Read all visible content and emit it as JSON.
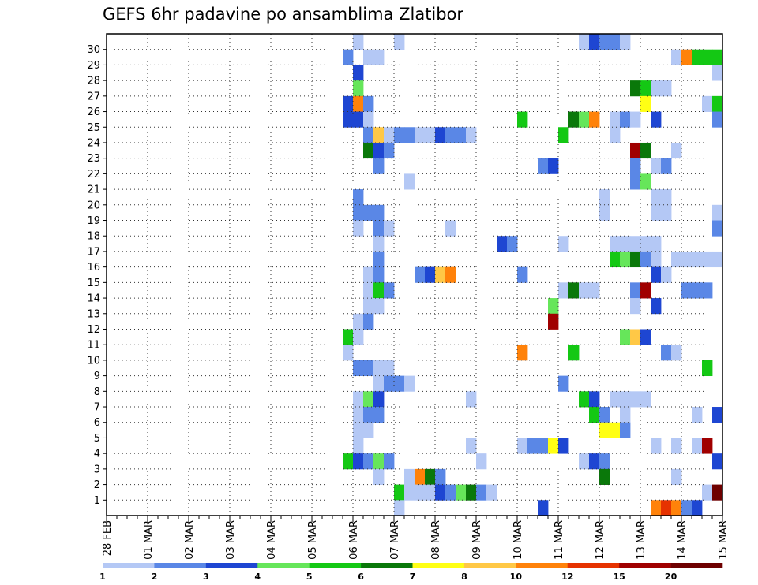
{
  "title": "GEFS 6hr padavine po ansamblima Zlatibor",
  "chart_data": {
    "type": "heatmap",
    "title": "GEFS 6hr padavine po ansamblima Zlatibor",
    "y_ticks": [
      "1",
      "2",
      "3",
      "4",
      "5",
      "6",
      "7",
      "8",
      "9",
      "10",
      "11",
      "12",
      "13",
      "14",
      "15",
      "16",
      "17",
      "18",
      "19",
      "20",
      "21",
      "22",
      "23",
      "24",
      "25",
      "26",
      "27",
      "28",
      "29",
      "30"
    ],
    "ylim": [
      0,
      30
    ],
    "x_tick_labels": [
      "28 FEB",
      "01 MAR",
      "02 MAR",
      "03 MAR",
      "04 MAR",
      "05 MAR",
      "06 MAR",
      "07 MAR",
      "08 MAR",
      "09 MAR",
      "10 MAR",
      "11 MAR",
      "12 MAR",
      "13 MAR",
      "14 MAR",
      "15 MAR"
    ],
    "x_steps_per_day": 4,
    "x_total_steps": 60,
    "grid": true,
    "colorbar": {
      "labels": [
        "1",
        "2",
        "3",
        "4",
        "5",
        "6",
        "7",
        "8",
        "10",
        "12",
        "15",
        "20"
      ],
      "colors": [
        "#b4c8f5",
        "#5a87e6",
        "#1e46d2",
        "#66e65a",
        "#14c814",
        "#0a780a",
        "#ffff14",
        "#ffc846",
        "#ff820a",
        "#e63200",
        "#a00000",
        "#6e0000"
      ]
    },
    "legend": "bottom colorbar",
    "series": [
      {
        "member": 30,
        "cells": [
          [
            24,
            0
          ],
          [
            28,
            0
          ],
          [
            46,
            0
          ],
          [
            47,
            2
          ],
          [
            48,
            1
          ],
          [
            49,
            1
          ],
          [
            50,
            0
          ]
        ]
      },
      {
        "member": 29,
        "cells": [
          [
            23,
            1
          ],
          [
            25,
            0
          ],
          [
            26,
            0
          ],
          [
            55,
            0
          ],
          [
            56,
            8
          ],
          [
            57,
            4
          ],
          [
            58,
            4
          ],
          [
            59,
            4
          ]
        ]
      },
      {
        "member": 28,
        "cells": [
          [
            24,
            2
          ],
          [
            59,
            0
          ]
        ]
      },
      {
        "member": 27,
        "cells": [
          [
            24,
            3
          ],
          [
            51,
            5
          ],
          [
            52,
            4
          ],
          [
            53,
            0
          ],
          [
            54,
            0
          ]
        ]
      },
      {
        "member": 26,
        "cells": [
          [
            23,
            2
          ],
          [
            24,
            8
          ],
          [
            25,
            1
          ],
          [
            52,
            6
          ],
          [
            58,
            0
          ],
          [
            59,
            4
          ]
        ]
      },
      {
        "member": 25,
        "cells": [
          [
            23,
            2
          ],
          [
            24,
            2
          ],
          [
            25,
            0
          ],
          [
            40,
            4
          ],
          [
            45,
            5
          ],
          [
            46,
            3
          ],
          [
            47,
            8
          ],
          [
            49,
            0
          ],
          [
            50,
            1
          ],
          [
            51,
            0
          ],
          [
            53,
            2
          ],
          [
            59,
            1
          ]
        ]
      },
      {
        "member": 24,
        "cells": [
          [
            25,
            1
          ],
          [
            26,
            7
          ],
          [
            27,
            0
          ],
          [
            28,
            1
          ],
          [
            29,
            1
          ],
          [
            30,
            0
          ],
          [
            31,
            0
          ],
          [
            32,
            2
          ],
          [
            33,
            1
          ],
          [
            34,
            1
          ],
          [
            35,
            0
          ],
          [
            44,
            4
          ],
          [
            49,
            0
          ]
        ]
      },
      {
        "member": 23,
        "cells": [
          [
            25,
            5
          ],
          [
            26,
            2
          ],
          [
            27,
            1
          ],
          [
            51,
            10
          ],
          [
            52,
            5
          ],
          [
            55,
            0
          ]
        ]
      },
      {
        "member": 22,
        "cells": [
          [
            26,
            1
          ],
          [
            42,
            1
          ],
          [
            43,
            2
          ],
          [
            51,
            1
          ],
          [
            53,
            0
          ],
          [
            54,
            1
          ]
        ]
      },
      {
        "member": 21,
        "cells": [
          [
            29,
            0
          ],
          [
            51,
            1
          ],
          [
            52,
            3
          ]
        ]
      },
      {
        "member": 20,
        "cells": [
          [
            24,
            1
          ],
          [
            48,
            0
          ],
          [
            53,
            0
          ],
          [
            54,
            0
          ]
        ]
      },
      {
        "member": 19,
        "cells": [
          [
            24,
            1
          ],
          [
            25,
            1
          ],
          [
            26,
            1
          ],
          [
            48,
            0
          ],
          [
            53,
            0
          ],
          [
            54,
            0
          ],
          [
            59,
            0
          ]
        ]
      },
      {
        "member": 18,
        "cells": [
          [
            24,
            0
          ],
          [
            26,
            1
          ],
          [
            27,
            0
          ],
          [
            33,
            0
          ],
          [
            59,
            1
          ]
        ]
      },
      {
        "member": 17,
        "cells": [
          [
            26,
            0
          ],
          [
            38,
            2
          ],
          [
            39,
            1
          ],
          [
            44,
            0
          ],
          [
            49,
            0
          ],
          [
            50,
            0
          ],
          [
            51,
            0
          ],
          [
            52,
            0
          ],
          [
            53,
            0
          ]
        ]
      },
      {
        "member": 16,
        "cells": [
          [
            26,
            1
          ],
          [
            49,
            4
          ],
          [
            50,
            3
          ],
          [
            51,
            5
          ],
          [
            52,
            1
          ],
          [
            53,
            0
          ],
          [
            55,
            0
          ],
          [
            56,
            0
          ],
          [
            57,
            0
          ],
          [
            58,
            0
          ],
          [
            59,
            0
          ]
        ]
      },
      {
        "member": 15,
        "cells": [
          [
            25,
            0
          ],
          [
            26,
            1
          ],
          [
            30,
            1
          ],
          [
            31,
            2
          ],
          [
            32,
            7
          ],
          [
            33,
            8
          ],
          [
            40,
            1
          ],
          [
            53,
            2
          ],
          [
            54,
            0
          ]
        ]
      },
      {
        "member": 14,
        "cells": [
          [
            25,
            0
          ],
          [
            26,
            4
          ],
          [
            27,
            1
          ],
          [
            44,
            0
          ],
          [
            45,
            5
          ],
          [
            46,
            0
          ],
          [
            47,
            0
          ],
          [
            51,
            1
          ],
          [
            52,
            10
          ],
          [
            56,
            1
          ],
          [
            57,
            1
          ],
          [
            58,
            1
          ]
        ]
      },
      {
        "member": 13,
        "cells": [
          [
            25,
            0
          ],
          [
            26,
            0
          ],
          [
            43,
            3
          ],
          [
            51,
            0
          ],
          [
            53,
            2
          ]
        ]
      },
      {
        "member": 12,
        "cells": [
          [
            24,
            0
          ],
          [
            25,
            1
          ],
          [
            43,
            10
          ]
        ]
      },
      {
        "member": 11,
        "cells": [
          [
            23,
            4
          ],
          [
            24,
            0
          ],
          [
            50,
            3
          ],
          [
            51,
            7
          ],
          [
            52,
            2
          ]
        ]
      },
      {
        "member": 10,
        "cells": [
          [
            23,
            0
          ],
          [
            40,
            8
          ],
          [
            45,
            4
          ],
          [
            54,
            1
          ],
          [
            55,
            0
          ]
        ]
      },
      {
        "member": 9,
        "cells": [
          [
            24,
            1
          ],
          [
            25,
            1
          ],
          [
            26,
            0
          ],
          [
            27,
            0
          ],
          [
            58,
            4
          ]
        ]
      },
      {
        "member": 8,
        "cells": [
          [
            26,
            0
          ],
          [
            27,
            1
          ],
          [
            28,
            1
          ],
          [
            29,
            0
          ],
          [
            44,
            1
          ]
        ]
      },
      {
        "member": 7,
        "cells": [
          [
            24,
            0
          ],
          [
            25,
            3
          ],
          [
            26,
            2
          ],
          [
            35,
            0
          ],
          [
            46,
            4
          ],
          [
            47,
            2
          ],
          [
            49,
            0
          ],
          [
            50,
            0
          ],
          [
            51,
            0
          ],
          [
            52,
            0
          ]
        ]
      },
      {
        "member": 6,
        "cells": [
          [
            24,
            0
          ],
          [
            25,
            1
          ],
          [
            26,
            1
          ],
          [
            47,
            4
          ],
          [
            48,
            1
          ],
          [
            50,
            0
          ],
          [
            57,
            0
          ],
          [
            59,
            2
          ]
        ]
      },
      {
        "member": 5,
        "cells": [
          [
            24,
            0
          ],
          [
            25,
            0
          ],
          [
            48,
            6
          ],
          [
            49,
            6
          ],
          [
            50,
            1
          ]
        ]
      },
      {
        "member": 4,
        "cells": [
          [
            24,
            0
          ],
          [
            35,
            0
          ],
          [
            40,
            0
          ],
          [
            41,
            1
          ],
          [
            42,
            1
          ],
          [
            43,
            6
          ],
          [
            44,
            2
          ],
          [
            53,
            0
          ],
          [
            55,
            0
          ],
          [
            57,
            0
          ],
          [
            58,
            10
          ]
        ]
      },
      {
        "member": 3,
        "cells": [
          [
            23,
            4
          ],
          [
            24,
            2
          ],
          [
            25,
            1
          ],
          [
            26,
            3
          ],
          [
            27,
            1
          ],
          [
            36,
            0
          ],
          [
            46,
            0
          ],
          [
            47,
            2
          ],
          [
            48,
            1
          ],
          [
            59,
            2
          ]
        ]
      },
      {
        "member": 2,
        "cells": [
          [
            26,
            0
          ],
          [
            29,
            0
          ],
          [
            30,
            8
          ],
          [
            31,
            5
          ],
          [
            32,
            1
          ],
          [
            48,
            5
          ],
          [
            55,
            0
          ]
        ]
      },
      {
        "member": 1,
        "cells": [
          [
            28,
            4
          ],
          [
            29,
            0
          ],
          [
            30,
            0
          ],
          [
            31,
            0
          ],
          [
            32,
            2
          ],
          [
            33,
            1
          ],
          [
            34,
            3
          ],
          [
            35,
            5
          ],
          [
            36,
            1
          ],
          [
            37,
            0
          ],
          [
            58,
            0
          ],
          [
            59,
            11
          ]
        ]
      },
      {
        "member": 0,
        "cells": [
          [
            28,
            0
          ],
          [
            42,
            2
          ],
          [
            53,
            8
          ],
          [
            54,
            9
          ],
          [
            55,
            8
          ],
          [
            56,
            1
          ],
          [
            57,
            2
          ]
        ]
      }
    ]
  }
}
